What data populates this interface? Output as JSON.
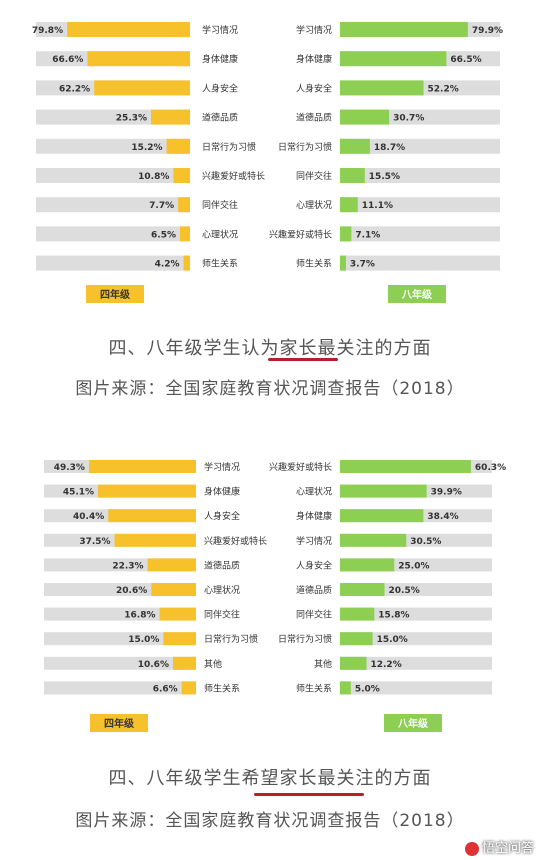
{
  "colors": {
    "grade4": "#f6c12b",
    "grade8": "#8ccf52",
    "track": "#dddddd",
    "text": "#333333"
  },
  "chart_data": [
    {
      "type": "bar",
      "left": {
        "badge": "四年级",
        "categories": [
          "学习情况",
          "身体健康",
          "人身安全",
          "道德品质",
          "日常行为习惯",
          "兴趣爱好或特长",
          "同伴交往",
          "心理状况",
          "师生关系"
        ],
        "values": [
          79.8,
          66.6,
          62.2,
          25.3,
          15.2,
          10.8,
          7.7,
          6.5,
          4.2
        ],
        "value_labels": [
          "79.8%",
          "66.6%",
          "62.2%",
          "25.3%",
          "15.2%",
          "10.8%",
          "7.7%",
          "6.5%",
          "4.2%"
        ]
      },
      "right": {
        "badge": "八年级",
        "categories": [
          "学习情况",
          "身体健康",
          "人身安全",
          "道德品质",
          "日常行为习惯",
          "同伴交往",
          "心理状况",
          "兴趣爱好或特长",
          "师生关系"
        ],
        "values": [
          79.9,
          66.5,
          52.2,
          30.7,
          18.7,
          15.5,
          11.1,
          7.1,
          3.7
        ],
        "value_labels": [
          "79.9%",
          "66.5%",
          "52.2%",
          "30.7%",
          "18.7%",
          "15.5%",
          "11.1%",
          "7.1%",
          "3.7%"
        ]
      },
      "xlim": [
        0,
        100
      ]
    },
    {
      "type": "bar",
      "left": {
        "badge": "四年级",
        "categories": [
          "学习情况",
          "身体健康",
          "人身安全",
          "兴趣爱好或特长",
          "道德品质",
          "心理状况",
          "同伴交往",
          "日常行为习惯",
          "其他",
          "师生关系"
        ],
        "values": [
          49.3,
          45.1,
          40.4,
          37.5,
          22.3,
          20.6,
          16.8,
          15.0,
          10.6,
          6.6
        ],
        "value_labels": [
          "49.3%",
          "45.1%",
          "40.4%",
          "37.5%",
          "22.3%",
          "20.6%",
          "16.8%",
          "15.0%",
          "10.6%",
          "6.6%"
        ]
      },
      "right": {
        "badge": "八年级",
        "categories": [
          "兴趣爱好或特长",
          "心理状况",
          "身体健康",
          "学习情况",
          "人身安全",
          "道德品质",
          "同伴交往",
          "日常行为习惯",
          "其他",
          "师生关系"
        ],
        "values": [
          60.3,
          39.9,
          38.4,
          30.5,
          25.0,
          20.5,
          15.8,
          15.0,
          12.2,
          5.0
        ],
        "value_labels": [
          "60.3%",
          "39.9%",
          "38.4%",
          "30.5%",
          "25.0%",
          "20.5%",
          "15.8%",
          "15.0%",
          "12.2%",
          "5.0%"
        ]
      },
      "xlim": [
        0,
        70
      ]
    }
  ],
  "captions": {
    "caption1": "四、八年级学生认为家长最关注的方面",
    "source1": "图片来源：全国家庭教育状况调查报告（2018）",
    "caption2": "四、八年级学生希望家长最关注的方面",
    "source2": "图片来源：全国家庭教育状况调查报告（2018）"
  },
  "watermark": "悟空问答"
}
